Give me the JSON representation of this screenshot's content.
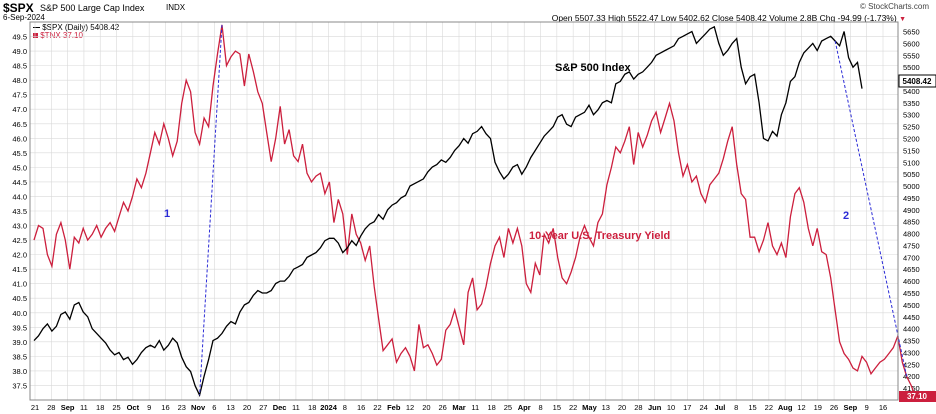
{
  "header": {
    "symbol": "$SPX",
    "name": "S&P 500 Large Cap Index",
    "exchange": "INDX",
    "date": "6-Sep-2024",
    "watermark": "© StockCharts.com",
    "quote": "Open 5507.33  High 5522.47  Low 5402.62  Close 5408.42  Volume 2.8B  Chg -94.99 (-1.73%)",
    "chg_marker": "▼"
  },
  "legend": [
    {
      "label": "$SPX (Daily) 5408.42",
      "color": "#000000",
      "marker": "line"
    },
    {
      "label": "$TNX 37.10",
      "color": "#cc2244",
      "marker": "square"
    }
  ],
  "labels": {
    "spx_title": "S&P 500 Index",
    "tnx_title": "10-Year U.S. Treasury Yield",
    "marker_1": "1",
    "marker_2": "2"
  },
  "right_badges": {
    "spx": "5408.42",
    "tnx": "37.10"
  },
  "colors": {
    "spx": "#000000",
    "tnx": "#cc1f3d",
    "divergence": "#2b2bd6",
    "grid": "#d9d9d9",
    "badge_tnx": "#cc1f3d"
  },
  "chart_data": {
    "type": "line",
    "x_tick_labels": [
      "21",
      "28",
      "Sep",
      "11",
      "18",
      "25",
      "Oct",
      "9",
      "16",
      "23",
      "Nov",
      "6",
      "13",
      "20",
      "27",
      "Dec",
      "11",
      "18",
      "2024",
      "8",
      "16",
      "22",
      "Feb",
      "12",
      "20",
      "26",
      "Mar",
      "11",
      "18",
      "25",
      "Apr",
      "8",
      "15",
      "22",
      "May",
      "13",
      "20",
      "28",
      "Jun",
      "10",
      "17",
      "24",
      "Jul",
      "8",
      "15",
      "22",
      "Aug",
      "12",
      "19",
      "26",
      "Sep",
      "9",
      "16"
    ],
    "left_axis": {
      "label": "TNX",
      "ticks": [
        "37.5",
        "38.0",
        "38.5",
        "39.0",
        "39.5",
        "40.0",
        "40.5",
        "41.0",
        "41.5",
        "42.0",
        "42.5",
        "43.0",
        "43.5",
        "44.0",
        "44.5",
        "45.0",
        "45.5",
        "46.0",
        "46.5",
        "47.0",
        "47.5",
        "48.0",
        "48.5",
        "49.0",
        "49.5"
      ],
      "min": 37.0,
      "max": 50.0
    },
    "right_axis": {
      "label": "SPX",
      "ticks": [
        "4150",
        "4200",
        "4250",
        "4300",
        "4350",
        "4400",
        "4450",
        "4500",
        "4550",
        "4600",
        "4650",
        "4700",
        "4750",
        "4800",
        "4850",
        "4900",
        "4950",
        "5000",
        "5050",
        "5100",
        "5150",
        "5200",
        "5250",
        "5300",
        "5350",
        "5400",
        "5450",
        "5500",
        "5550",
        "5600",
        "5650"
      ],
      "min": 4100,
      "max": 5690
    },
    "series": [
      {
        "name": "$SPX (Daily)",
        "axis": "right",
        "values": [
          4350,
          4370,
          4400,
          4420,
          4390,
          4410,
          4460,
          4470,
          4440,
          4500,
          4510,
          4470,
          4450,
          4400,
          4380,
          4360,
          4340,
          4310,
          4290,
          4300,
          4270,
          4280,
          4250,
          4270,
          4300,
          4320,
          4330,
          4320,
          4350,
          4310,
          4330,
          4360,
          4340,
          4280,
          4240,
          4220,
          4160,
          4120,
          4200,
          4270,
          4350,
          4360,
          4380,
          4410,
          4430,
          4420,
          4470,
          4500,
          4510,
          4540,
          4560,
          4550,
          4550,
          4560,
          4590,
          4600,
          4600,
          4620,
          4650,
          4660,
          4670,
          4700,
          4710,
          4720,
          4740,
          4770,
          4780,
          4780,
          4760,
          4720,
          4740,
          4770,
          4750,
          4790,
          4820,
          4840,
          4850,
          4880,
          4860,
          4900,
          4920,
          4930,
          4950,
          4960,
          5000,
          5010,
          5020,
          5030,
          5060,
          5080,
          5090,
          5110,
          5100,
          5120,
          5150,
          5170,
          5200,
          5180,
          5220,
          5230,
          5250,
          5220,
          5200,
          5100,
          5060,
          5030,
          5050,
          5080,
          5090,
          5050,
          5080,
          5120,
          5150,
          5180,
          5210,
          5230,
          5250,
          5290,
          5300,
          5260,
          5250,
          5290,
          5300,
          5310,
          5340,
          5300,
          5320,
          5350,
          5360,
          5350,
          5430,
          5440,
          5470,
          5480,
          5450,
          5470,
          5480,
          5500,
          5520,
          5550,
          5560,
          5570,
          5580,
          5590,
          5620,
          5630,
          5640,
          5650,
          5600,
          5620,
          5640,
          5660,
          5670,
          5600,
          5550,
          5570,
          5600,
          5620,
          5500,
          5430,
          5460,
          5470,
          5350,
          5200,
          5190,
          5230,
          5210,
          5300,
          5350,
          5440,
          5460,
          5520,
          5560,
          5580,
          5600,
          5570,
          5610,
          5620,
          5630,
          5610,
          5590,
          5650,
          5540,
          5500,
          5520,
          5410
        ]
      },
      {
        "name": "$TNX",
        "axis": "left",
        "values": [
          42.5,
          43.0,
          42.9,
          42.0,
          41.6,
          42.7,
          43.1,
          42.5,
          41.5,
          42.6,
          42.4,
          42.9,
          42.5,
          42.7,
          43.0,
          42.6,
          42.9,
          43.1,
          42.8,
          43.3,
          43.8,
          43.5,
          44.0,
          44.6,
          44.3,
          44.8,
          45.5,
          46.2,
          45.8,
          46.5,
          46.0,
          45.4,
          45.9,
          47.2,
          48.0,
          47.6,
          46.2,
          45.8,
          46.7,
          46.4,
          47.8,
          48.9,
          49.9,
          48.5,
          48.8,
          49.0,
          48.9,
          47.8,
          48.9,
          48.3,
          47.6,
          47.2,
          46.2,
          45.2,
          46.0,
          47.1,
          45.8,
          46.3,
          45.4,
          45.2,
          45.8,
          44.8,
          44.5,
          44.7,
          44.8,
          44.1,
          44.5,
          43.1,
          43.9,
          43.4,
          42.0,
          43.4,
          42.7,
          42.4,
          41.8,
          42.3,
          40.9,
          39.8,
          38.7,
          38.9,
          39.1,
          38.3,
          38.6,
          38.8,
          38.5,
          38.0,
          39.6,
          38.8,
          38.9,
          38.6,
          38.2,
          38.4,
          39.4,
          39.6,
          40.1,
          39.5,
          38.9,
          40.7,
          41.2,
          40.1,
          40.3,
          40.9,
          41.7,
          42.3,
          42.6,
          41.9,
          42.9,
          42.4,
          42.9,
          42.3,
          41.0,
          40.7,
          41.7,
          41.3,
          42.7,
          42.4,
          42.9,
          41.9,
          41.2,
          41.0,
          41.4,
          41.9,
          42.6,
          43.0,
          42.6,
          42.3,
          43.1,
          43.4,
          44.4,
          45.0,
          45.7,
          45.5,
          45.9,
          46.4,
          45.1,
          46.2,
          45.7,
          46.1,
          46.6,
          46.9,
          46.2,
          46.7,
          47.2,
          46.6,
          45.5,
          44.7,
          45.1,
          44.5,
          44.7,
          44.1,
          43.8,
          44.4,
          44.6,
          44.8,
          45.3,
          45.9,
          46.4,
          45.1,
          44.1,
          43.9,
          42.6,
          42.6,
          42.1,
          42.5,
          43.1,
          42.3,
          42.0,
          42.4,
          41.9,
          43.3,
          44.1,
          44.3,
          43.8,
          42.9,
          42.3,
          42.9,
          42.1,
          42.0,
          41.2,
          40.1,
          39.0,
          38.6,
          38.4,
          38.1,
          38.0,
          38.5,
          38.3,
          37.9,
          38.1,
          38.3,
          38.4,
          38.6,
          38.8,
          39.2,
          38.3,
          37.8,
          37.5,
          37.1
        ]
      }
    ],
    "annotations": [
      {
        "text": "1",
        "from": {
          "series_index": 42,
          "series": "$TNX"
        },
        "to": {
          "series_index": 37,
          "series": "$SPX (Daily)"
        }
      },
      {
        "text": "2",
        "from": {
          "series_index": 179,
          "series": "$SPX (Daily)"
        },
        "to": {
          "series_index": 195,
          "series": "$TNX"
        }
      }
    ],
    "grid": true
  }
}
